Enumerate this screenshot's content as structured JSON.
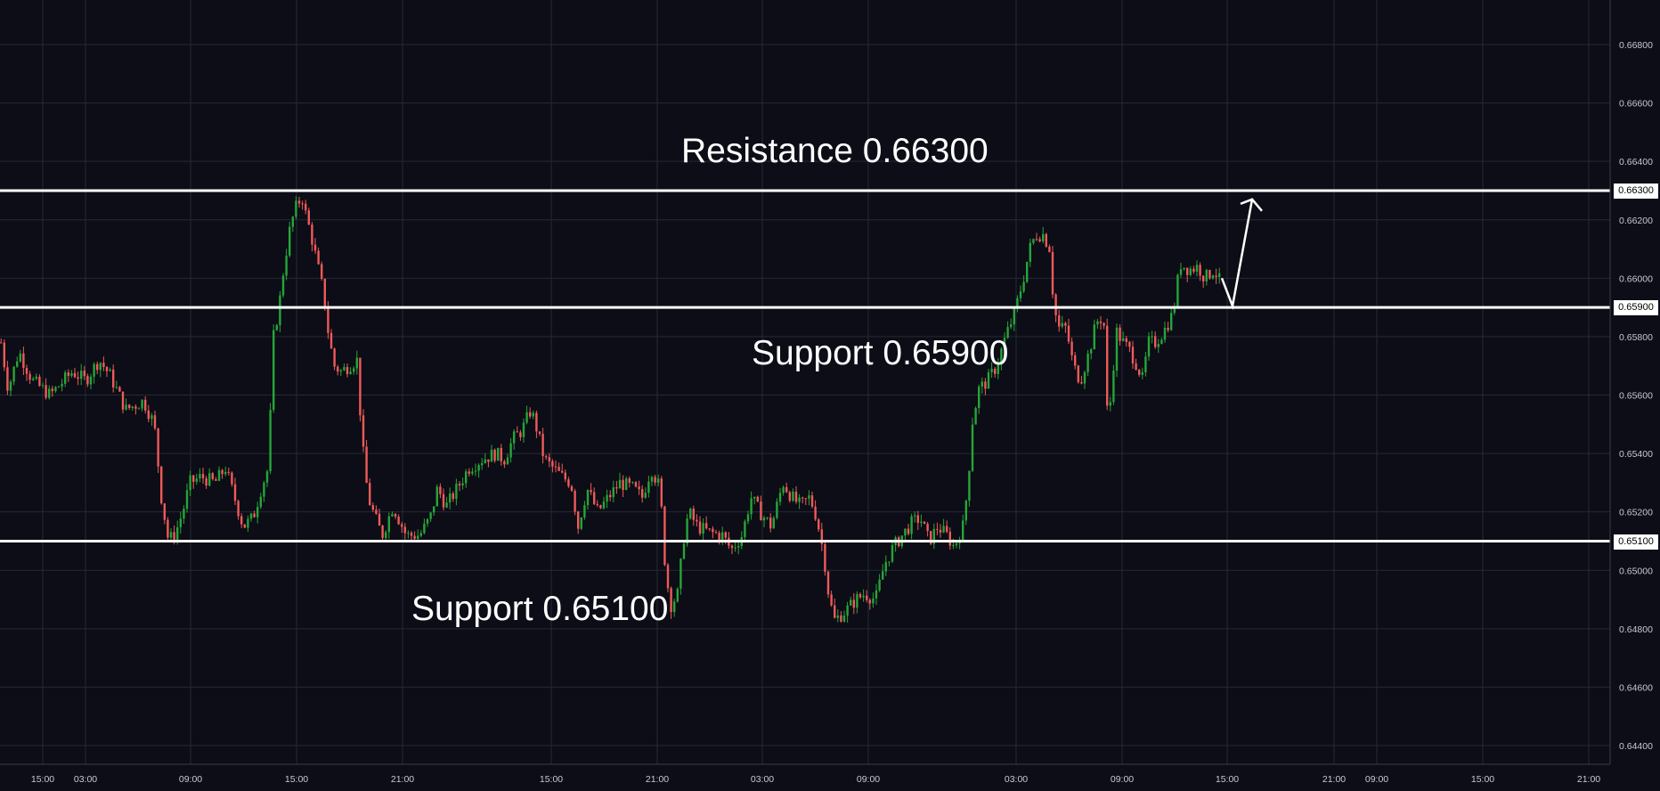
{
  "chart_data": {
    "type": "candlestick",
    "colors": {
      "background": "#0c0d16",
      "grid": "#262936",
      "up": "#26a538",
      "down": "#ef5a5a",
      "level_line": "#ffffff",
      "text": "#c9c9d0"
    },
    "grid": true,
    "y_axis": {
      "position": "right",
      "ylim": [
        0.6435,
        0.6685
      ],
      "ticks": [
        "0.66800",
        "0.66600",
        "0.66400",
        "0.66200",
        "0.66000",
        "0.65800",
        "0.65600",
        "0.65400",
        "0.65200",
        "0.65000",
        "0.64800",
        "0.64600",
        "0.64400"
      ]
    },
    "x_axis": {
      "tick_labels": [
        "15:00",
        "03:00",
        "09:00",
        "15:00",
        "21:00",
        "15:00",
        "21:00",
        "03:00",
        "09:00",
        "03:00",
        "09:00",
        "15:00",
        "21:00",
        "09:00",
        "15:00",
        "21:00"
      ]
    },
    "levels": [
      {
        "name": "resistance",
        "value": 0.663,
        "label": "0.66300",
        "annotation": "Resistance 0.66300"
      },
      {
        "name": "support-upper",
        "value": 0.659,
        "label": "0.65900",
        "annotation": "Support 0.65900"
      },
      {
        "name": "support-lower",
        "value": 0.651,
        "label": "0.65100",
        "annotation": "Support 0.65100"
      }
    ],
    "price_path": [
      [
        0,
        0.6578
      ],
      [
        8,
        0.6562
      ],
      [
        20,
        0.6575
      ],
      [
        35,
        0.6565
      ],
      [
        55,
        0.656
      ],
      [
        80,
        0.6568
      ],
      [
        95,
        0.6565
      ],
      [
        110,
        0.6572
      ],
      [
        122,
        0.6567
      ],
      [
        140,
        0.6555
      ],
      [
        160,
        0.6558
      ],
      [
        172,
        0.655
      ],
      [
        180,
        0.6525
      ],
      [
        188,
        0.651
      ],
      [
        196,
        0.6513
      ],
      [
        204,
        0.652
      ],
      [
        212,
        0.653
      ],
      [
        225,
        0.6532
      ],
      [
        240,
        0.653
      ],
      [
        252,
        0.6535
      ],
      [
        262,
        0.6525
      ],
      [
        272,
        0.6515
      ],
      [
        283,
        0.6518
      ],
      [
        292,
        0.6528
      ],
      [
        300,
        0.6535
      ],
      [
        306,
        0.658
      ],
      [
        312,
        0.659
      ],
      [
        318,
        0.6605
      ],
      [
        325,
        0.6618
      ],
      [
        332,
        0.6625
      ],
      [
        338,
        0.6628
      ],
      [
        342,
        0.6622
      ],
      [
        348,
        0.6615
      ],
      [
        355,
        0.6605
      ],
      [
        362,
        0.6595
      ],
      [
        368,
        0.658
      ],
      [
        374,
        0.657
      ],
      [
        382,
        0.6568
      ],
      [
        390,
        0.657
      ],
      [
        400,
        0.6572
      ],
      [
        405,
        0.6545
      ],
      [
        412,
        0.6525
      ],
      [
        420,
        0.6518
      ],
      [
        428,
        0.6512
      ],
      [
        440,
        0.6522
      ],
      [
        455,
        0.6512
      ],
      [
        470,
        0.6512
      ],
      [
        482,
        0.6518
      ],
      [
        490,
        0.6528
      ],
      [
        500,
        0.6522
      ],
      [
        512,
        0.6528
      ],
      [
        525,
        0.6535
      ],
      [
        540,
        0.6538
      ],
      [
        555,
        0.654
      ],
      [
        565,
        0.6538
      ],
      [
        575,
        0.6545
      ],
      [
        585,
        0.6548
      ],
      [
        595,
        0.6555
      ],
      [
        602,
        0.6548
      ],
      [
        610,
        0.6538
      ],
      [
        620,
        0.6535
      ],
      [
        630,
        0.6532
      ],
      [
        640,
        0.653
      ],
      [
        648,
        0.6515
      ],
      [
        658,
        0.6528
      ],
      [
        670,
        0.652
      ],
      [
        682,
        0.6525
      ],
      [
        695,
        0.653
      ],
      [
        710,
        0.6528
      ],
      [
        720,
        0.6525
      ],
      [
        730,
        0.6535
      ],
      [
        740,
        0.6528
      ],
      [
        746,
        0.65
      ],
      [
        752,
        0.6488
      ],
      [
        760,
        0.6492
      ],
      [
        766,
        0.651
      ],
      [
        772,
        0.652
      ],
      [
        782,
        0.6515
      ],
      [
        795,
        0.6513
      ],
      [
        810,
        0.6512
      ],
      [
        820,
        0.6507
      ],
      [
        832,
        0.6512
      ],
      [
        842,
        0.6525
      ],
      [
        852,
        0.652
      ],
      [
        865,
        0.6515
      ],
      [
        878,
        0.653
      ],
      [
        888,
        0.6525
      ],
      [
        898,
        0.6522
      ],
      [
        908,
        0.6525
      ],
      [
        916,
        0.6518
      ],
      [
        924,
        0.6505
      ],
      [
        930,
        0.649
      ],
      [
        936,
        0.6483
      ],
      [
        948,
        0.6486
      ],
      [
        960,
        0.649
      ],
      [
        970,
        0.6492
      ],
      [
        982,
        0.649
      ],
      [
        992,
        0.6502
      ],
      [
        1002,
        0.6508
      ],
      [
        1012,
        0.6512
      ],
      [
        1022,
        0.6516
      ],
      [
        1032,
        0.6518
      ],
      [
        1042,
        0.651
      ],
      [
        1052,
        0.6515
      ],
      [
        1062,
        0.6512
      ],
      [
        1070,
        0.6508
      ],
      [
        1080,
        0.6515
      ],
      [
        1086,
        0.653
      ],
      [
        1090,
        0.655
      ],
      [
        1098,
        0.6562
      ],
      [
        1108,
        0.6565
      ],
      [
        1118,
        0.657
      ],
      [
        1128,
        0.658
      ],
      [
        1138,
        0.6588
      ],
      [
        1148,
        0.66
      ],
      [
        1155,
        0.661
      ],
      [
        1162,
        0.6615
      ],
      [
        1170,
        0.6615
      ],
      [
        1178,
        0.661
      ],
      [
        1182,
        0.659
      ],
      [
        1188,
        0.6583
      ],
      [
        1196,
        0.6583
      ],
      [
        1204,
        0.657
      ],
      [
        1212,
        0.6565
      ],
      [
        1222,
        0.6575
      ],
      [
        1230,
        0.6585
      ],
      [
        1238,
        0.6587
      ],
      [
        1242,
        0.6555
      ],
      [
        1246,
        0.6558
      ],
      [
        1252,
        0.6582
      ],
      [
        1260,
        0.6578
      ],
      [
        1268,
        0.6575
      ],
      [
        1276,
        0.657
      ],
      [
        1282,
        0.6565
      ],
      [
        1288,
        0.6578
      ],
      [
        1296,
        0.6578
      ],
      [
        1306,
        0.6582
      ],
      [
        1316,
        0.6588
      ],
      [
        1324,
        0.6605
      ],
      [
        1334,
        0.6603
      ],
      [
        1344,
        0.6604
      ],
      [
        1352,
        0.66
      ],
      [
        1362,
        0.6603
      ],
      [
        1370,
        0.6598
      ]
    ],
    "projection_arrow": [
      {
        "time_px": 1372,
        "price": 0.66
      },
      {
        "time_px": 1384,
        "price": 0.65905
      },
      {
        "time_px": 1406,
        "price": 0.6627
      }
    ]
  }
}
